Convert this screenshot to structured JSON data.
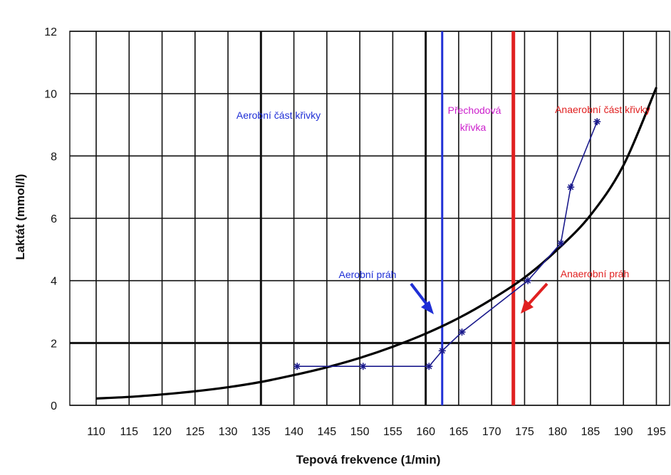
{
  "chart_data": {
    "type": "line",
    "xlabel": "Tepová frekvence (1/min)",
    "ylabel": "Laktát (mmol/l)",
    "xlim": [
      106,
      197
    ],
    "ylim": [
      0,
      12
    ],
    "x_ticks": [
      110,
      115,
      120,
      125,
      130,
      135,
      140,
      145,
      150,
      155,
      160,
      165,
      170,
      175,
      180,
      185,
      190,
      195
    ],
    "y_ticks": [
      0,
      2,
      4,
      6,
      8,
      10,
      12
    ],
    "grid": true,
    "major_vertical_gridlines": [
      135,
      160
    ],
    "major_horizontal_gridlines": [
      2
    ],
    "series": [
      {
        "values_x": [
          110,
          115,
          120,
          125,
          130,
          135,
          140,
          145,
          150,
          155,
          160,
          165,
          170,
          175,
          180,
          185,
          190,
          195
        ],
        "values_y": [
          0.22,
          0.27,
          0.35,
          0.45,
          0.58,
          0.75,
          0.97,
          1.22,
          1.52,
          1.88,
          2.3,
          2.8,
          3.4,
          4.1,
          5.0,
          6.1,
          7.7,
          10.2
        ],
        "color": "#000000"
      },
      {
        "values_x": [
          140.5,
          150.5,
          160.5,
          162.5,
          165.5,
          175.5,
          180.5,
          182,
          186
        ],
        "values_y": [
          1.25,
          1.25,
          1.25,
          1.75,
          2.35,
          4.0,
          5.2,
          7.0,
          9.1
        ],
        "color": "#1a1a8c"
      }
    ],
    "thresholds": [
      {
        "x": 162.5,
        "color": "#1f2fd6",
        "label": "Aerobní práh",
        "label_color": "#1f2fd6"
      },
      {
        "x": 173.3,
        "color": "#e02020",
        "label": "Anaerobní práh",
        "label_color": "#e02020"
      }
    ],
    "region_labels": [
      {
        "text": "Aerobní část křivky",
        "color": "#1f2fd6"
      },
      {
        "text": "Přechodová",
        "color": "#cc20cc"
      },
      {
        "text": "křivka",
        "color": "#cc20cc"
      },
      {
        "text": "Anaerobní část křivky",
        "color": "#e02020"
      }
    ]
  }
}
